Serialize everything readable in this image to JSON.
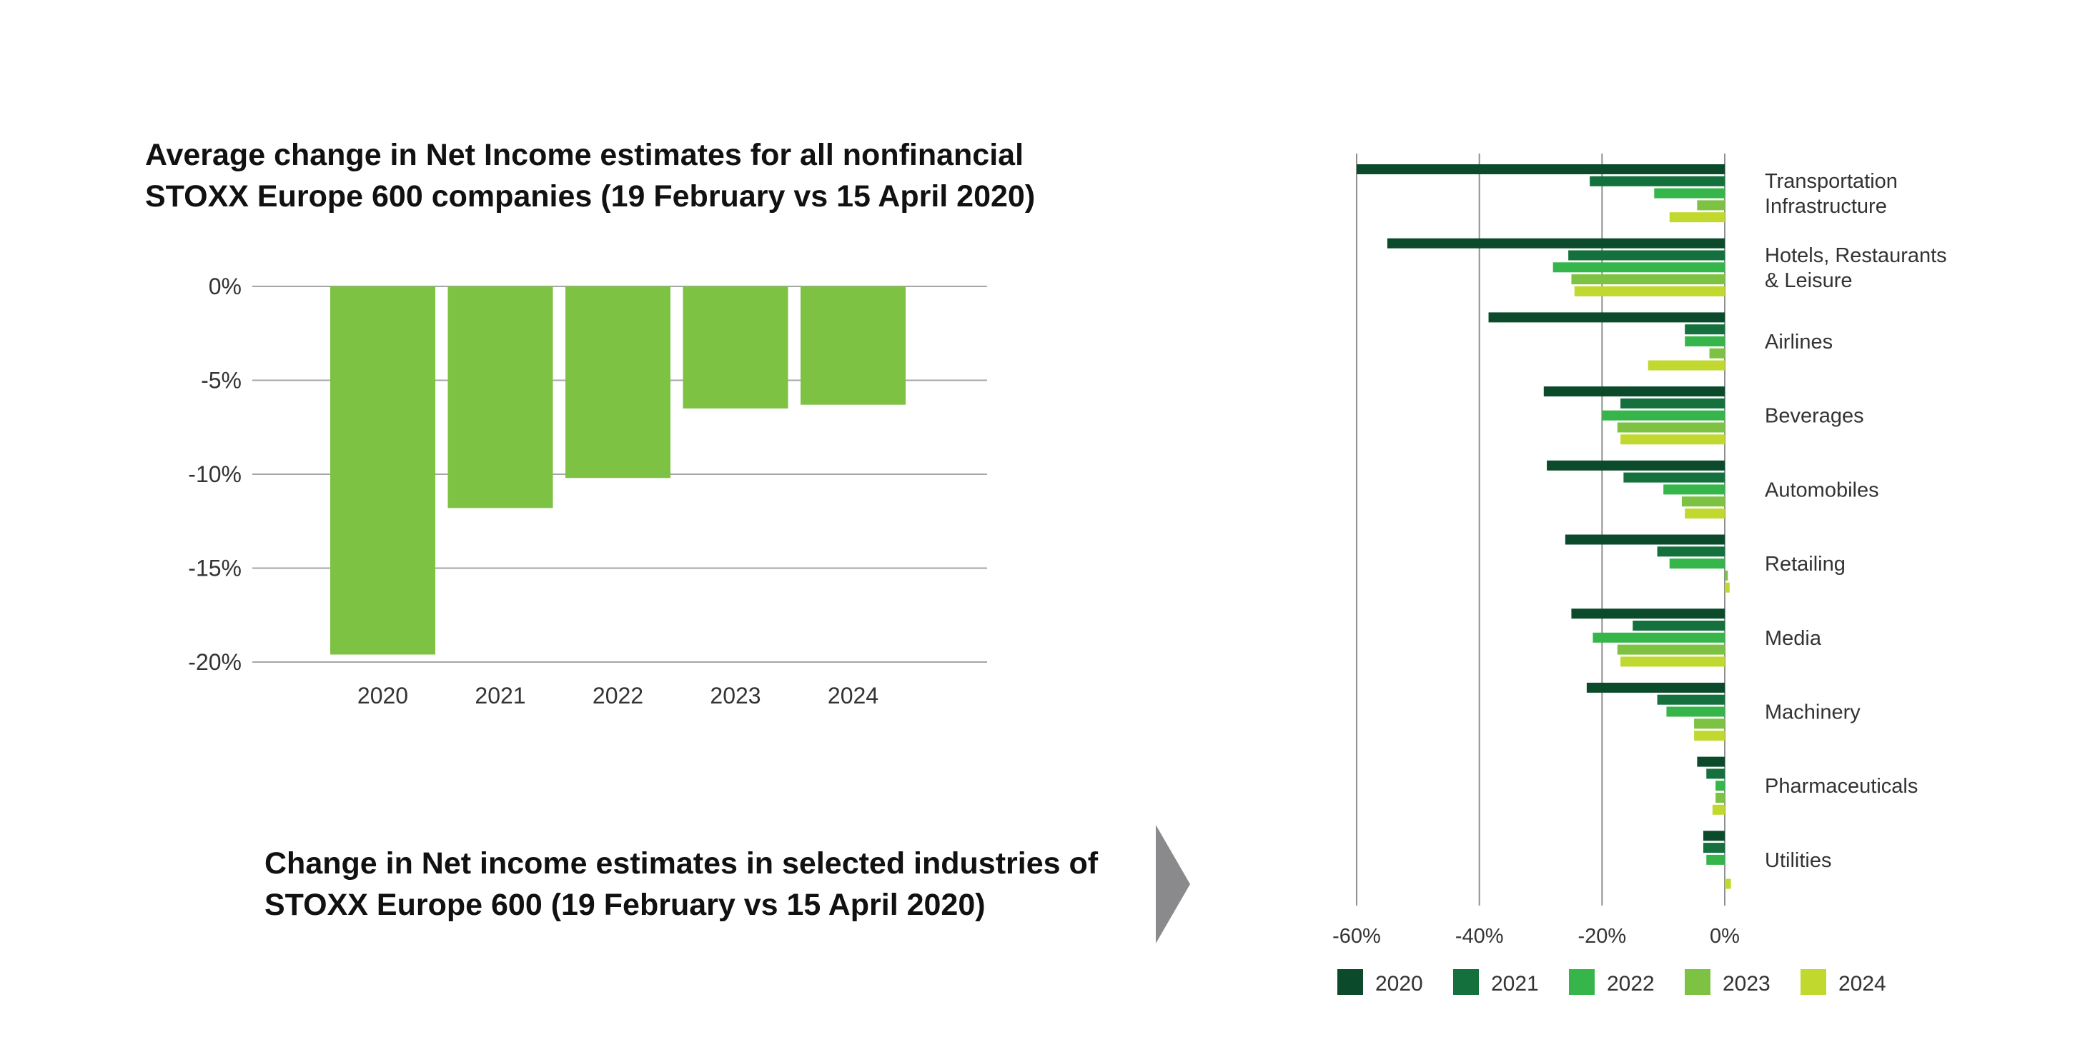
{
  "left_title_lines": [
    "Average change in Net Income estimates for all nonfinancial",
    "STOXX Europe 600 companies (19 February vs 15 April 2020)"
  ],
  "right_title_lines": [
    "Change in Net income estimates in selected industries of",
    "STOXX Europe 600 (19 February vs 15 April 2020)"
  ],
  "chart_data": [
    {
      "type": "bar",
      "orientation": "vertical",
      "categories": [
        "2020",
        "2021",
        "2022",
        "2023",
        "2024"
      ],
      "values": [
        -19.6,
        -11.8,
        -10.2,
        -6.5,
        -6.3
      ],
      "ylim": [
        -20,
        0
      ],
      "yticks": [
        0,
        -5,
        -10,
        -15,
        -20
      ],
      "ytick_labels": [
        "0%",
        "-5%",
        "-10%",
        "-15%",
        "-20%"
      ],
      "grid": true,
      "color": "#7dc242"
    },
    {
      "type": "bar",
      "orientation": "horizontal",
      "categories": [
        [
          "Transportation",
          "Infrastructure"
        ],
        [
          "Hotels, Restaurants",
          "& Leisure"
        ],
        [
          "Airlines"
        ],
        [
          "Beverages"
        ],
        [
          "Automobiles"
        ],
        [
          "Retailing"
        ],
        [
          "Media"
        ],
        [
          "Machinery"
        ],
        [
          "Pharmaceuticals"
        ],
        [
          "Utilities"
        ]
      ],
      "series": [
        {
          "name": "2020",
          "color": "#0b4a2b",
          "values": [
            -60,
            -55,
            -38.5,
            -29.5,
            -29,
            -26,
            -25,
            -22.5,
            -4.5,
            -3.5
          ]
        },
        {
          "name": "2021",
          "color": "#14703d",
          "values": [
            -22,
            -25.5,
            -6.5,
            -17,
            -16.5,
            -11,
            -15,
            -11,
            -3,
            -3.5
          ]
        },
        {
          "name": "2022",
          "color": "#36b54a",
          "values": [
            -11.5,
            -28,
            -6.5,
            -20,
            -10,
            -9,
            -21.5,
            -9.5,
            -1.5,
            -3
          ]
        },
        {
          "name": "2023",
          "color": "#7dc242",
          "values": [
            -4.5,
            -25,
            -2.5,
            -17.5,
            -7,
            0.5,
            -17.5,
            -5,
            -1.5,
            0
          ]
        },
        {
          "name": "2024",
          "color": "#c1d82f",
          "values": [
            -9,
            -24.5,
            -12.5,
            -17,
            -6.5,
            0.8,
            -17,
            -5,
            -2,
            1
          ]
        }
      ],
      "xlim": [
        -60,
        0
      ],
      "xticks": [
        -60,
        -40,
        -20,
        0
      ],
      "xtick_labels": [
        "-60%",
        "-40%",
        "-20%",
        "0%"
      ],
      "grid": true,
      "legend_position": "bottom"
    }
  ]
}
